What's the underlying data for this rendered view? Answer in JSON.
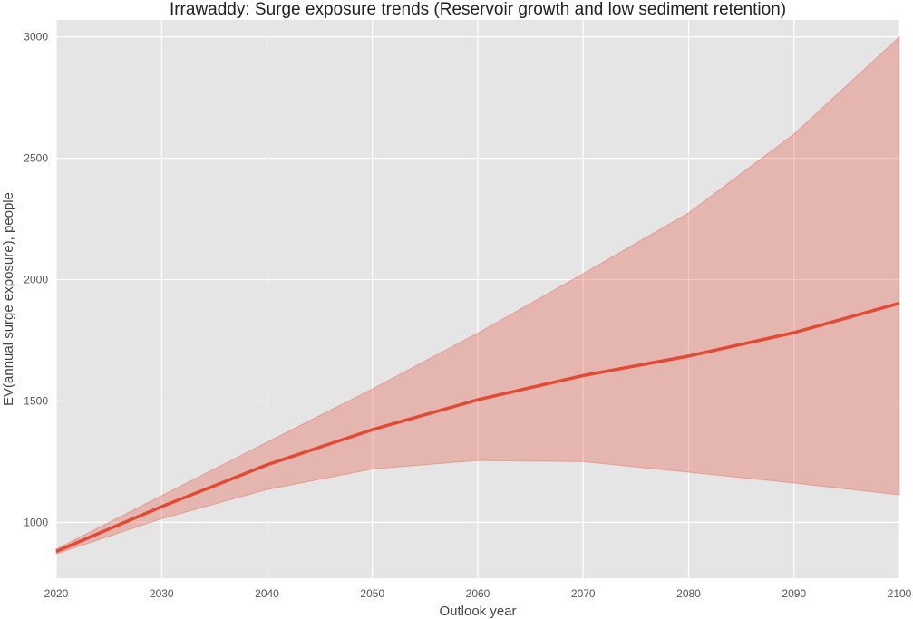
{
  "chart_data": {
    "type": "area",
    "title": "Irrawaddy: Surge exposure trends (Reservoir growth and low sediment retention)",
    "xlabel": "Outlook year",
    "ylabel": "EV(annual surge exposure), people",
    "xlim": [
      2020,
      2100
    ],
    "ylim": [
      770,
      3070
    ],
    "x_ticks": [
      2020,
      2030,
      2040,
      2050,
      2060,
      2070,
      2080,
      2090,
      2100
    ],
    "y_ticks": [
      1000,
      1500,
      2000,
      2500,
      3000
    ],
    "grid": true,
    "x": [
      2020,
      2030,
      2040,
      2050,
      2060,
      2070,
      2080,
      2090,
      2100
    ],
    "series": [
      {
        "values": [
          880,
          1065,
          1237,
          1382,
          1505,
          1605,
          1685,
          1782,
          1903
        ],
        "lower": [
          870,
          1015,
          1135,
          1220,
          1255,
          1250,
          1207,
          1162,
          1113
        ],
        "upper": [
          890,
          1110,
          1330,
          1550,
          1780,
          2025,
          2275,
          2600,
          3000
        ],
        "color": "#E24A33",
        "band_color": "#E24A33"
      }
    ],
    "background_color": "#E5E5E5",
    "grid_color": "#FFFFFF"
  }
}
